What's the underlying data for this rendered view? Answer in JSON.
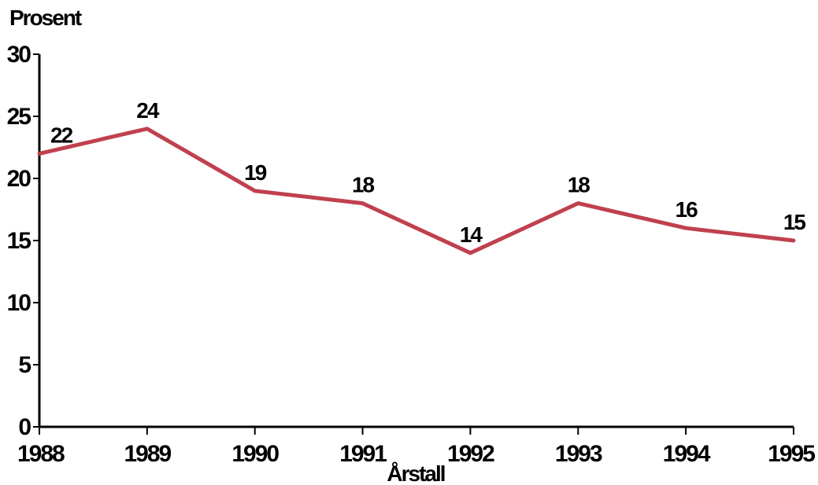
{
  "chart_data": {
    "type": "line",
    "title": "",
    "ylabel": "Prosent",
    "xlabel": "Årstall",
    "categories": [
      "1988",
      "1989",
      "1990",
      "1991",
      "1992",
      "1993",
      "1994",
      "1995"
    ],
    "series": [
      {
        "values": [
          22,
          24,
          19,
          18,
          14,
          18,
          16,
          15
        ],
        "data_labels": [
          "22",
          "24",
          "19",
          "18",
          "14",
          "18",
          "16",
          "15"
        ],
        "color": "#c0404e"
      }
    ],
    "ylim": [
      0,
      30
    ],
    "yticks": [
      0,
      5,
      10,
      15,
      20,
      25,
      30
    ],
    "ytick_labels": [
      "0",
      "5",
      "10",
      "15",
      "20",
      "25",
      "30"
    ],
    "grid": false,
    "legend": "none"
  }
}
